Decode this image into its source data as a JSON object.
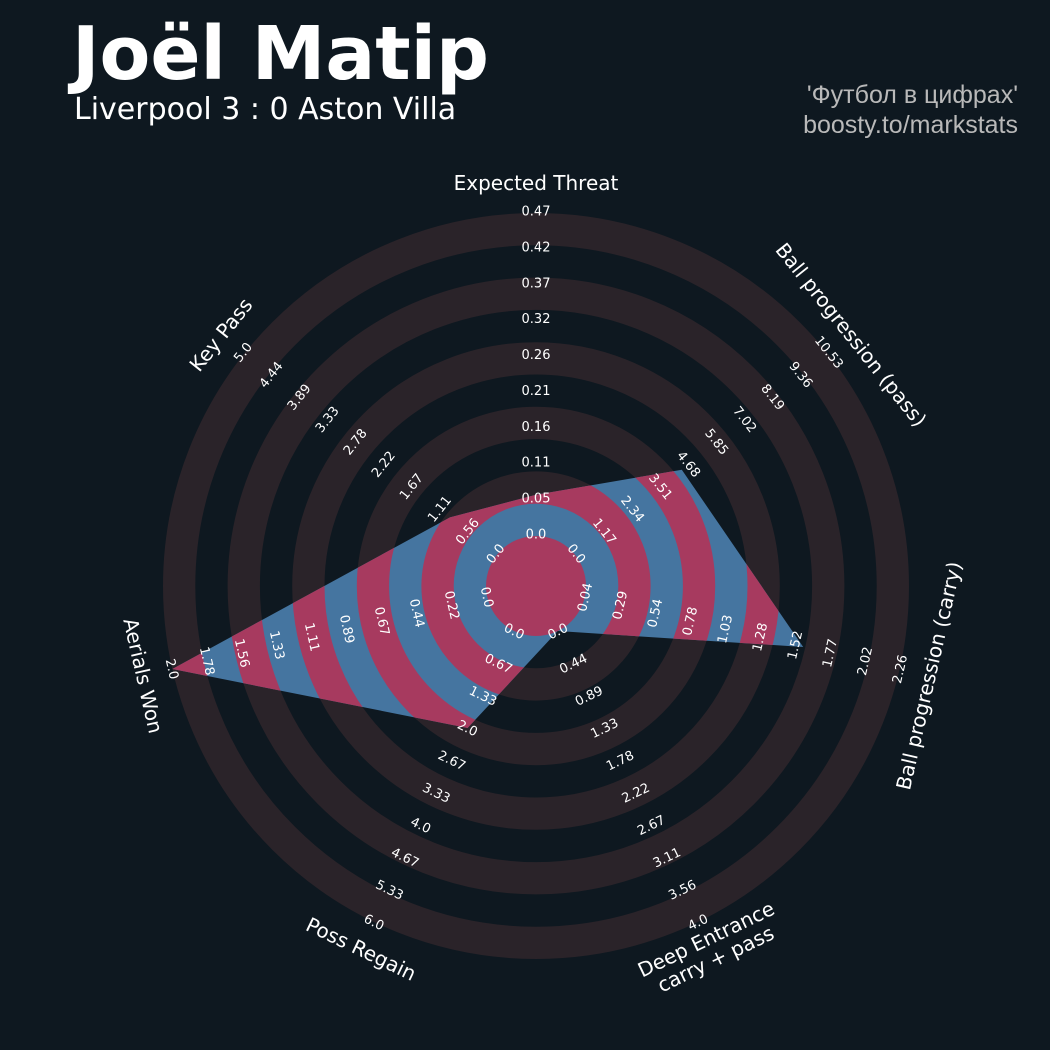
{
  "header": {
    "title": "Joël Matip",
    "subtitle": "Liverpool 3 : 0 Aston Villa",
    "credit_line1": "'Футбол в цифрах'",
    "credit_line2": "boosty.to/markstats"
  },
  "colors": {
    "background": "#0e1820",
    "ring": "#2a2329",
    "poly_blue": "#4575a0",
    "poly_red": "#a73a5f",
    "text": "#ffffff"
  },
  "chart_data": {
    "type": "radar",
    "rings": 5,
    "params": [
      {
        "label": "Expected Threat",
        "label2": "",
        "value": 0.06,
        "ticks": [
          "0.0",
          "0.05",
          "0.11",
          "0.16",
          "0.21",
          "0.26",
          "0.32",
          "0.37",
          "0.42",
          "0.47"
        ]
      },
      {
        "label": "Ball progression (pass)",
        "label2": "",
        "value": 4.45,
        "ticks": [
          "0.0",
          "1.17",
          "2.34",
          "3.51",
          "4.68",
          "5.85",
          "7.02",
          "8.19",
          "9.36",
          "10.53"
        ]
      },
      {
        "label": "Ball progression (carry)",
        "label2": "",
        "value": 1.58,
        "ticks": [
          "0.04",
          "0.29",
          "0.54",
          "0.78",
          "1.03",
          "1.28",
          "1.52",
          "1.77",
          "2.02",
          "2.26"
        ]
      },
      {
        "label": "Deep Entrance",
        "label2": "carry + pass",
        "value": 0.0,
        "ticks": [
          "0.0",
          "0.44",
          "0.89",
          "1.33",
          "1.78",
          "2.22",
          "2.67",
          "3.11",
          "3.56",
          "4.0"
        ]
      },
      {
        "label": "Poss Regain",
        "label2": "",
        "value": 2.0,
        "ticks": [
          "0.0",
          "0.67",
          "1.33",
          "2.0",
          "2.67",
          "3.33",
          "4.0",
          "4.67",
          "5.33",
          "6.0"
        ]
      },
      {
        "label": "Aerials Won",
        "label2": "",
        "value": 2.0,
        "ticks": [
          "0.0",
          "0.22",
          "0.44",
          "0.67",
          "0.89",
          "1.11",
          "1.33",
          "1.56",
          "1.78",
          "2.0"
        ]
      },
      {
        "label": "Key Pass",
        "label2": "",
        "value": 0.93,
        "ticks": [
          "0.0",
          "0.56",
          "1.11",
          "1.67",
          "2.22",
          "2.78",
          "3.33",
          "3.89",
          "4.44",
          "5.0"
        ]
      }
    ]
  }
}
